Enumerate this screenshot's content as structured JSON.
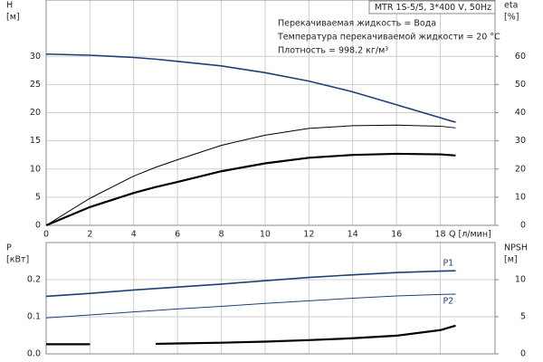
{
  "chart_data": [
    {
      "type": "line",
      "title": "MTR 1S-5/5, 3*400 V, 50Hz",
      "annotations": [
        "Перекачиваемая жидкость = Вода",
        "Температура перекачиваемой жидкости = 20 °C",
        "Плотность = 998.2 кг/м³"
      ],
      "y_label": "H",
      "y_unit": "[м]",
      "y2_label": "eta",
      "y2_unit": "[%]",
      "x_label": "Q [л/мин]",
      "x": [
        0,
        2,
        4,
        5,
        6,
        8,
        10,
        12,
        14,
        16,
        18,
        18.7
      ],
      "xlim": [
        0,
        20.5
      ],
      "xticks": [
        0,
        2,
        4,
        6,
        8,
        10,
        12,
        14,
        16,
        18
      ],
      "ylim": [
        0,
        40
      ],
      "yticks": [
        0,
        5,
        10,
        15,
        20,
        25,
        30
      ],
      "y2lim": [
        0,
        80
      ],
      "y2ticks": [
        0,
        10,
        20,
        30,
        40,
        50,
        60
      ],
      "grid": true,
      "series": [
        {
          "color": "#1f3f78",
          "line_width": 1.6,
          "values": [
            30.4,
            30.2,
            29.8,
            29.5,
            29.1,
            28.3,
            27.1,
            25.6,
            23.7,
            21.4,
            19.1,
            18.3
          ]
        },
        {
          "color": "#000000",
          "line_width": 1,
          "axis": "y2",
          "values": [
            0,
            9.6,
            17.5,
            20.6,
            23.3,
            28.4,
            32,
            34.4,
            35.4,
            35.6,
            35.2,
            34.6
          ]
        },
        {
          "color": "#000000",
          "line_width": 2.2,
          "axis": "y2",
          "values": [
            0,
            6.5,
            11.5,
            13.6,
            15.4,
            19.2,
            22,
            24,
            25,
            25.4,
            25.2,
            24.8
          ]
        }
      ]
    },
    {
      "type": "line",
      "y_label": "P",
      "y_unit": "[кВт]",
      "y2_label": "NPSH",
      "y2_unit": "[м]",
      "x": [
        0,
        2,
        4,
        5,
        6,
        8,
        10,
        12,
        14,
        16,
        18,
        18.7
      ],
      "xlim": [
        0,
        20.5
      ],
      "xticks": [
        0,
        2,
        4,
        6,
        8,
        10,
        12,
        14,
        16,
        18
      ],
      "ylim": [
        0,
        0.3
      ],
      "yticks": [
        {
          "value": 0,
          "label": "0.0"
        },
        0.1,
        0.2
      ],
      "y2lim": [
        0,
        15
      ],
      "y2ticks": [
        0,
        5,
        10
      ],
      "grid": true,
      "series": [
        {
          "name": "P1",
          "color": "#1f3f78",
          "line_width": 1.6,
          "values": [
            0.155,
            0.163,
            0.172,
            0.176,
            0.18,
            0.188,
            0.197,
            0.206,
            0.213,
            0.219,
            0.223,
            0.224
          ]
        },
        {
          "name": "P2",
          "color": "#1f3f78",
          "line_width": 1,
          "values": [
            0.097,
            0.105,
            0.113,
            0.117,
            0.121,
            0.128,
            0.136,
            0.143,
            0.15,
            0.156,
            0.16,
            0.161
          ]
        },
        {
          "color": "#000000",
          "line_width": 2.2,
          "axis": "y2",
          "values": [
            1.3,
            1.3,
            null,
            1.35,
            1.4,
            1.5,
            1.65,
            1.85,
            2.1,
            2.45,
            3.2,
            3.8
          ]
        }
      ]
    }
  ]
}
